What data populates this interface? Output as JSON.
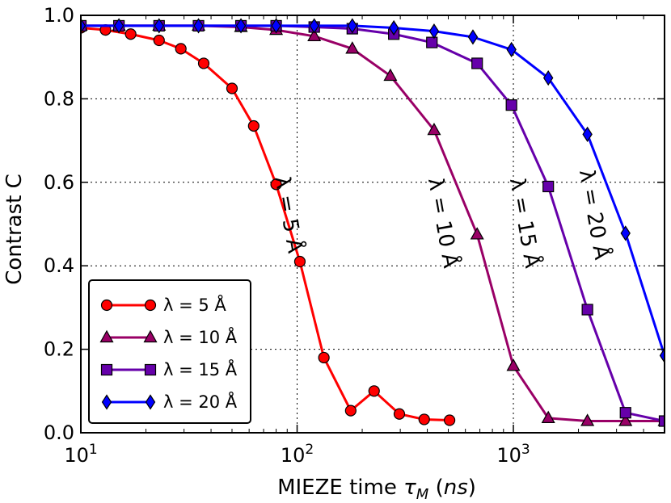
{
  "chart_data": {
    "type": "line",
    "xscale": "log",
    "xlabel": "MIEZE time τ_M (ns)",
    "ylabel": "Contrast C",
    "xlim": [
      10,
      5000
    ],
    "ylim": [
      0.0,
      1.0
    ],
    "xticks": [
      {
        "value": 10,
        "base": "10",
        "exp": "1"
      },
      {
        "value": 100,
        "base": "10",
        "exp": "2"
      },
      {
        "value": 1000,
        "base": "10",
        "exp": "3"
      }
    ],
    "yticks": [
      {
        "value": 0.0,
        "label": "0.0"
      },
      {
        "value": 0.2,
        "label": "0.2"
      },
      {
        "value": 0.4,
        "label": "0.4"
      },
      {
        "value": 0.6,
        "label": "0.6"
      },
      {
        "value": 0.8,
        "label": "0.8"
      },
      {
        "value": 1.0,
        "label": "1.0"
      }
    ],
    "grid": true,
    "legend_position": "bottom-left",
    "series": [
      {
        "name": "λ = 5 Å",
        "color": "#ff0000",
        "marker": "circle",
        "points": [
          [
            10,
            0.97
          ],
          [
            13,
            0.965
          ],
          [
            17,
            0.955
          ],
          [
            23,
            0.94
          ],
          [
            29,
            0.92
          ],
          [
            37,
            0.885
          ],
          [
            50,
            0.825
          ],
          [
            63,
            0.735
          ],
          [
            80,
            0.595
          ],
          [
            103,
            0.41
          ],
          [
            133,
            0.18
          ],
          [
            177,
            0.053
          ],
          [
            227,
            0.1
          ],
          [
            297,
            0.045
          ],
          [
            387,
            0.032
          ],
          [
            507,
            0.03
          ]
        ]
      },
      {
        "name": "λ = 10 Å",
        "color": "#990066",
        "marker": "triangle",
        "points": [
          [
            10,
            0.975
          ],
          [
            15,
            0.975
          ],
          [
            23,
            0.975
          ],
          [
            35,
            0.975
          ],
          [
            55,
            0.972
          ],
          [
            80,
            0.965
          ],
          [
            120,
            0.95
          ],
          [
            180,
            0.92
          ],
          [
            270,
            0.855
          ],
          [
            430,
            0.725
          ],
          [
            680,
            0.475
          ],
          [
            1000,
            0.16
          ],
          [
            1450,
            0.035
          ],
          [
            2200,
            0.028
          ],
          [
            3300,
            0.028
          ],
          [
            5000,
            0.028
          ]
        ]
      },
      {
        "name": "λ = 15 Å",
        "color": "#6600aa",
        "marker": "square",
        "points": [
          [
            10,
            0.975
          ],
          [
            15,
            0.975
          ],
          [
            23,
            0.975
          ],
          [
            35,
            0.975
          ],
          [
            55,
            0.975
          ],
          [
            80,
            0.975
          ],
          [
            120,
            0.972
          ],
          [
            180,
            0.968
          ],
          [
            280,
            0.955
          ],
          [
            420,
            0.935
          ],
          [
            680,
            0.885
          ],
          [
            980,
            0.785
          ],
          [
            1450,
            0.59
          ],
          [
            2200,
            0.295
          ],
          [
            3300,
            0.048
          ],
          [
            5000,
            0.028
          ]
        ]
      },
      {
        "name": "λ = 20 Å",
        "color": "#0000ff",
        "marker": "diamond",
        "points": [
          [
            10,
            0.975
          ],
          [
            15,
            0.975
          ],
          [
            23,
            0.975
          ],
          [
            35,
            0.975
          ],
          [
            55,
            0.975
          ],
          [
            80,
            0.975
          ],
          [
            120,
            0.975
          ],
          [
            180,
            0.975
          ],
          [
            280,
            0.97
          ],
          [
            430,
            0.962
          ],
          [
            650,
            0.948
          ],
          [
            980,
            0.918
          ],
          [
            1450,
            0.85
          ],
          [
            2200,
            0.715
          ],
          [
            3300,
            0.478
          ],
          [
            5000,
            0.185
          ]
        ]
      }
    ],
    "annotations": [
      {
        "text": "λ = 5 Å",
        "x": 85,
        "y": 0.52,
        "rotation": 80
      },
      {
        "text": "λ = 10 Å",
        "x": 440,
        "y": 0.5,
        "rotation": 80
      },
      {
        "text": "λ = 15 Å",
        "x": 1050,
        "y": 0.5,
        "rotation": 80
      },
      {
        "text": "λ = 20 Å",
        "x": 2200,
        "y": 0.52,
        "rotation": 80
      }
    ]
  }
}
